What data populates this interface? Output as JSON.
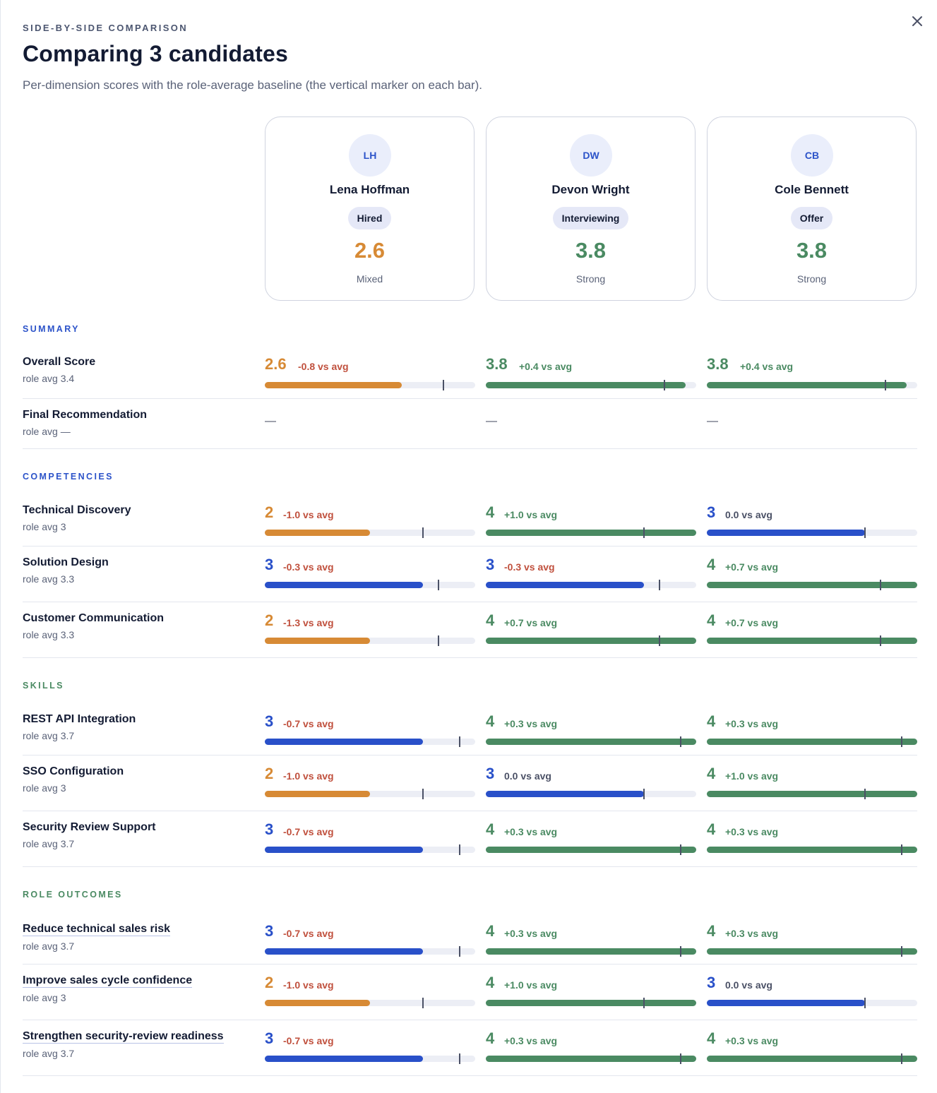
{
  "header": {
    "eyebrow": "SIDE-BY-SIDE COMPARISON",
    "title": "Comparing 3 candidates",
    "subtitle": "Per-dimension scores with the role-average baseline (the vertical marker on each bar).",
    "close_icon": "close-icon"
  },
  "colors": {
    "orange": "#d78a35",
    "green": "#4a8a62",
    "blue": "#2950c9",
    "negative": "#c0503d",
    "neutral": "#4b5166",
    "summary_section": "#2c53c9",
    "competencies_section": "#2c53c9",
    "skills_section": "#4a8a62",
    "outcomes_section": "#4a8a62"
  },
  "candidates": [
    {
      "initials": "LH",
      "name": "Lena Hoffman",
      "status": "Hired",
      "score": "2.6",
      "verdict": "Mixed",
      "tone": "orange"
    },
    {
      "initials": "DW",
      "name": "Devon Wright",
      "status": "Interviewing",
      "score": "3.8",
      "verdict": "Strong",
      "tone": "green"
    },
    {
      "initials": "CB",
      "name": "Cole Bennett",
      "status": "Offer",
      "score": "3.8",
      "verdict": "Strong",
      "tone": "green"
    }
  ],
  "sections": [
    {
      "title": "SUMMARY",
      "color_key": "summary_section",
      "rows": [
        {
          "label": "Overall Score",
          "avg_text": "role avg 3.4",
          "avg": 3.4,
          "link": false,
          "large": true,
          "cells": [
            {
              "score": "2.6",
              "value": 2.6,
              "delta": "-0.8 vs avg",
              "tone": "orange",
              "delta_tone": "negative"
            },
            {
              "score": "3.8",
              "value": 3.8,
              "delta": "+0.4 vs avg",
              "tone": "green",
              "delta_tone": "green"
            },
            {
              "score": "3.8",
              "value": 3.8,
              "delta": "+0.4 vs avg",
              "tone": "green",
              "delta_tone": "green"
            }
          ]
        },
        {
          "label": "Final Recommendation",
          "avg_text": "role avg —",
          "avg": null,
          "link": false,
          "empty": true,
          "cells": [
            {
              "score": "—"
            },
            {
              "score": "—"
            },
            {
              "score": "—"
            }
          ]
        }
      ]
    },
    {
      "title": "COMPETENCIES",
      "color_key": "competencies_section",
      "rows": [
        {
          "label": "Technical Discovery",
          "avg_text": "role avg 3",
          "avg": 3.0,
          "link": false,
          "cells": [
            {
              "score": "2",
              "value": 2,
              "delta": "-1.0 vs avg",
              "tone": "orange",
              "delta_tone": "negative"
            },
            {
              "score": "4",
              "value": 4,
              "delta": "+1.0 vs avg",
              "tone": "green",
              "delta_tone": "green"
            },
            {
              "score": "3",
              "value": 3,
              "delta": "0.0 vs avg",
              "tone": "blue",
              "delta_tone": "neutral"
            }
          ]
        },
        {
          "label": "Solution Design",
          "avg_text": "role avg 3.3",
          "avg": 3.3,
          "link": false,
          "cells": [
            {
              "score": "3",
              "value": 3,
              "delta": "-0.3 vs avg",
              "tone": "blue",
              "delta_tone": "negative"
            },
            {
              "score": "3",
              "value": 3,
              "delta": "-0.3 vs avg",
              "tone": "blue",
              "delta_tone": "negative"
            },
            {
              "score": "4",
              "value": 4,
              "delta": "+0.7 vs avg",
              "tone": "green",
              "delta_tone": "green"
            }
          ]
        },
        {
          "label": "Customer Communication",
          "avg_text": "role avg 3.3",
          "avg": 3.3,
          "link": false,
          "cells": [
            {
              "score": "2",
              "value": 2,
              "delta": "-1.3 vs avg",
              "tone": "orange",
              "delta_tone": "negative"
            },
            {
              "score": "4",
              "value": 4,
              "delta": "+0.7 vs avg",
              "tone": "green",
              "delta_tone": "green"
            },
            {
              "score": "4",
              "value": 4,
              "delta": "+0.7 vs avg",
              "tone": "green",
              "delta_tone": "green"
            }
          ]
        }
      ]
    },
    {
      "title": "SKILLS",
      "color_key": "skills_section",
      "rows": [
        {
          "label": "REST API Integration",
          "avg_text": "role avg 3.7",
          "avg": 3.7,
          "link": false,
          "cells": [
            {
              "score": "3",
              "value": 3,
              "delta": "-0.7 vs avg",
              "tone": "blue",
              "delta_tone": "negative"
            },
            {
              "score": "4",
              "value": 4,
              "delta": "+0.3 vs avg",
              "tone": "green",
              "delta_tone": "green"
            },
            {
              "score": "4",
              "value": 4,
              "delta": "+0.3 vs avg",
              "tone": "green",
              "delta_tone": "green"
            }
          ]
        },
        {
          "label": "SSO Configuration",
          "avg_text": "role avg 3",
          "avg": 3.0,
          "link": false,
          "cells": [
            {
              "score": "2",
              "value": 2,
              "delta": "-1.0 vs avg",
              "tone": "orange",
              "delta_tone": "negative"
            },
            {
              "score": "3",
              "value": 3,
              "delta": "0.0 vs avg",
              "tone": "blue",
              "delta_tone": "neutral"
            },
            {
              "score": "4",
              "value": 4,
              "delta": "+1.0 vs avg",
              "tone": "green",
              "delta_tone": "green"
            }
          ]
        },
        {
          "label": "Security Review Support",
          "avg_text": "role avg 3.7",
          "avg": 3.7,
          "link": false,
          "cells": [
            {
              "score": "3",
              "value": 3,
              "delta": "-0.7 vs avg",
              "tone": "blue",
              "delta_tone": "negative"
            },
            {
              "score": "4",
              "value": 4,
              "delta": "+0.3 vs avg",
              "tone": "green",
              "delta_tone": "green"
            },
            {
              "score": "4",
              "value": 4,
              "delta": "+0.3 vs avg",
              "tone": "green",
              "delta_tone": "green"
            }
          ]
        }
      ]
    },
    {
      "title": "ROLE OUTCOMES",
      "color_key": "outcomes_section",
      "rows": [
        {
          "label": "Reduce technical sales risk",
          "avg_text": "role avg 3.7",
          "avg": 3.7,
          "link": true,
          "cells": [
            {
              "score": "3",
              "value": 3,
              "delta": "-0.7 vs avg",
              "tone": "blue",
              "delta_tone": "negative"
            },
            {
              "score": "4",
              "value": 4,
              "delta": "+0.3 vs avg",
              "tone": "green",
              "delta_tone": "green"
            },
            {
              "score": "4",
              "value": 4,
              "delta": "+0.3 vs avg",
              "tone": "green",
              "delta_tone": "green"
            }
          ]
        },
        {
          "label": "Improve sales cycle confidence",
          "avg_text": "role avg 3",
          "avg": 3.0,
          "link": true,
          "cells": [
            {
              "score": "2",
              "value": 2,
              "delta": "-1.0 vs avg",
              "tone": "orange",
              "delta_tone": "negative"
            },
            {
              "score": "4",
              "value": 4,
              "delta": "+1.0 vs avg",
              "tone": "green",
              "delta_tone": "green"
            },
            {
              "score": "3",
              "value": 3,
              "delta": "0.0 vs avg",
              "tone": "blue",
              "delta_tone": "neutral"
            }
          ]
        },
        {
          "label": "Strengthen security-review readiness",
          "avg_text": "role avg 3.7",
          "avg": 3.7,
          "link": true,
          "cells": [
            {
              "score": "3",
              "value": 3,
              "delta": "-0.7 vs avg",
              "tone": "blue",
              "delta_tone": "negative"
            },
            {
              "score": "4",
              "value": 4,
              "delta": "+0.3 vs avg",
              "tone": "green",
              "delta_tone": "green"
            },
            {
              "score": "4",
              "value": 4,
              "delta": "+0.3 vs avg",
              "tone": "green",
              "delta_tone": "green"
            }
          ]
        }
      ]
    }
  ],
  "scale_max": 4
}
